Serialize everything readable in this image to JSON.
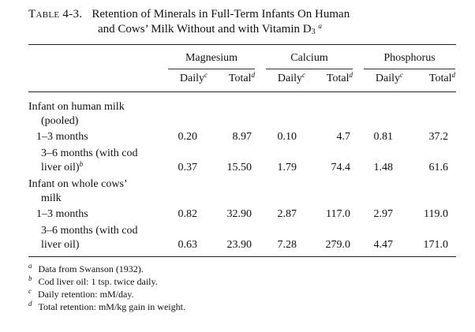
{
  "caption": {
    "label": "Table 4-3.",
    "line1": "Retention of Minerals in Full-Term Infants On Human",
    "line2": "and Cows’ Milk Without and with Vitamin D",
    "line2_sub": "3",
    "line2_mark": "a"
  },
  "groups": [
    {
      "name": "Magnesium"
    },
    {
      "name": "Calcium"
    },
    {
      "name": "Phosphorus"
    }
  ],
  "subheads": [
    {
      "label": "Daily",
      "mark": "c"
    },
    {
      "label": "Total",
      "mark": "d"
    },
    {
      "label": "Daily",
      "mark": "c"
    },
    {
      "label": "Total",
      "mark": "d"
    },
    {
      "label": "Daily",
      "mark": "c"
    },
    {
      "label": "Total",
      "mark": "d"
    }
  ],
  "stub_lines": [
    {
      "text": "Infant on human milk",
      "mark": ""
    },
    {
      "text": "(pooled)",
      "mark": ""
    },
    {
      "text": "1–3 months",
      "mark": ""
    },
    {
      "text": "3–6 months (with cod",
      "mark": ""
    },
    {
      "text": "liver oil)",
      "mark": "b"
    },
    {
      "text": "Infant on whole cows’",
      "mark": ""
    },
    {
      "text": "milk",
      "mark": ""
    },
    {
      "text": "1–3 months",
      "mark": ""
    },
    {
      "text": "3–6 months (with cod",
      "mark": ""
    },
    {
      "text": "liver oil)",
      "mark": ""
    }
  ],
  "rows": [
    {
      "values": [
        "0.20",
        "8.97",
        "0.10",
        "4.7",
        "0.81",
        "37.2"
      ]
    },
    {
      "values": [
        "0.37",
        "15.50",
        "1.79",
        "74.4",
        "1.48",
        "61.6"
      ]
    },
    {
      "values": [
        "0.82",
        "32.90",
        "2.87",
        "117.0",
        "2.97",
        "119.0"
      ]
    },
    {
      "values": [
        "0.63",
        "23.90",
        "7.28",
        "279.0",
        "4.47",
        "171.0"
      ]
    }
  ],
  "footnotes": [
    {
      "mark": "a",
      "text": "Data from Swanson (1932)."
    },
    {
      "mark": "b",
      "text": "Cod liver oil: 1 tsp. twice daily."
    },
    {
      "mark": "c",
      "text": "Daily retention: mM/day."
    },
    {
      "mark": "d",
      "text": "Total retention: mM/kg gain in weight."
    }
  ]
}
